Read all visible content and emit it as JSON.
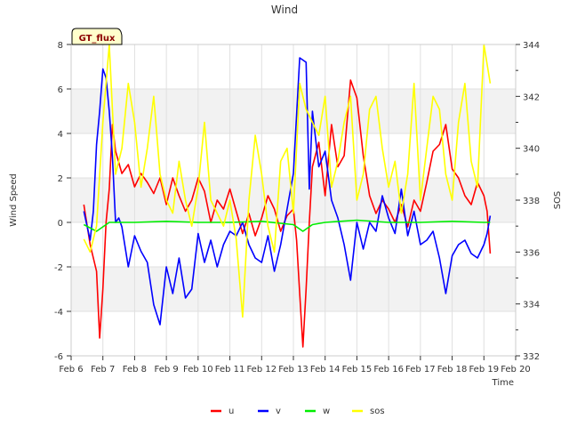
{
  "chart_data": {
    "type": "line",
    "title": "Wind",
    "xlabel": "Time",
    "ylabel": "Wind Speed",
    "y2label": "SOS",
    "badge": "GT_flux",
    "xlim": [
      0,
      14
    ],
    "ylim": [
      -6,
      8
    ],
    "y2lim": [
      332,
      344
    ],
    "x_ticks": [
      {
        "x": 0,
        "label": "Feb 6"
      },
      {
        "x": 1,
        "label": "Feb 7"
      },
      {
        "x": 2,
        "label": "Feb 8"
      },
      {
        "x": 3,
        "label": "Feb 9"
      },
      {
        "x": 4,
        "label": "Feb 10"
      },
      {
        "x": 5,
        "label": "Feb 11"
      },
      {
        "x": 6,
        "label": "Feb 12"
      },
      {
        "x": 7,
        "label": "Feb 13"
      },
      {
        "x": 8,
        "label": "Feb 14"
      },
      {
        "x": 9,
        "label": "Feb 15"
      },
      {
        "x": 10,
        "label": "Feb 16"
      },
      {
        "x": 11,
        "label": "Feb 17"
      },
      {
        "x": 12,
        "label": "Feb 18"
      },
      {
        "x": 13,
        "label": "Feb 19"
      },
      {
        "x": 14,
        "label": "Feb 20"
      }
    ],
    "y_ticks": [
      -6,
      -4,
      -2,
      0,
      2,
      4,
      6,
      8
    ],
    "y2_ticks": [
      332,
      334,
      336,
      338,
      340,
      342,
      344
    ],
    "grid": true,
    "legend_position": "bottom-center",
    "series": [
      {
        "name": "u",
        "axis": "left",
        "color": "#ff0000",
        "x": [
          0.4,
          0.6,
          0.8,
          0.9,
          1.0,
          1.1,
          1.2,
          1.3,
          1.4,
          1.6,
          1.8,
          2.0,
          2.2,
          2.4,
          2.6,
          2.8,
          3.0,
          3.2,
          3.4,
          3.6,
          3.8,
          4.0,
          4.2,
          4.4,
          4.6,
          4.8,
          5.0,
          5.2,
          5.4,
          5.6,
          5.8,
          6.0,
          6.2,
          6.4,
          6.6,
          6.8,
          7.0,
          7.1,
          7.2,
          7.3,
          7.4,
          7.5,
          7.6,
          7.8,
          8.0,
          8.2,
          8.4,
          8.6,
          8.8,
          9.0,
          9.2,
          9.4,
          9.6,
          9.8,
          10.0,
          10.2,
          10.4,
          10.6,
          10.8,
          11.0,
          11.2,
          11.4,
          11.6,
          11.8,
          12.0,
          12.2,
          12.4,
          12.6,
          12.8,
          13.0,
          13.1,
          13.2
        ],
        "y": [
          0.8,
          -1.0,
          -2.2,
          -5.2,
          -3.0,
          0.0,
          1.5,
          4.4,
          3.2,
          2.2,
          2.6,
          1.6,
          2.2,
          1.8,
          1.3,
          2.0,
          0.8,
          2.0,
          1.2,
          0.5,
          1.0,
          2.0,
          1.4,
          0.0,
          1.0,
          0.6,
          1.5,
          0.5,
          -0.5,
          0.4,
          -0.6,
          0.2,
          1.2,
          0.6,
          -0.4,
          0.3,
          0.6,
          -0.8,
          -3.2,
          -5.6,
          -3.0,
          0.0,
          2.5,
          3.6,
          1.2,
          4.4,
          2.5,
          3.0,
          6.4,
          5.6,
          3.0,
          1.2,
          0.4,
          1.0,
          0.6,
          0.0,
          0.8,
          -0.2,
          1.0,
          0.5,
          1.8,
          3.2,
          3.5,
          4.4,
          2.4,
          2.0,
          1.2,
          0.8,
          1.8,
          1.2,
          0.5,
          -1.4
        ]
      },
      {
        "name": "v",
        "axis": "left",
        "color": "#0000ff",
        "x": [
          0.4,
          0.6,
          0.7,
          0.8,
          0.9,
          1.0,
          1.1,
          1.2,
          1.3,
          1.4,
          1.5,
          1.6,
          1.8,
          2.0,
          2.2,
          2.4,
          2.6,
          2.8,
          3.0,
          3.2,
          3.4,
          3.6,
          3.8,
          4.0,
          4.2,
          4.4,
          4.6,
          4.8,
          5.0,
          5.2,
          5.4,
          5.6,
          5.8,
          6.0,
          6.2,
          6.4,
          6.6,
          6.8,
          7.0,
          7.2,
          7.4,
          7.5,
          7.6,
          7.8,
          8.0,
          8.2,
          8.4,
          8.6,
          8.8,
          9.0,
          9.2,
          9.4,
          9.6,
          9.8,
          10.0,
          10.2,
          10.4,
          10.6,
          10.8,
          11.0,
          11.2,
          11.4,
          11.6,
          11.8,
          12.0,
          12.2,
          12.4,
          12.6,
          12.8,
          13.0,
          13.1,
          13.2
        ],
        "y": [
          0.5,
          -0.8,
          0.5,
          3.5,
          5.0,
          6.9,
          6.5,
          5.0,
          3.0,
          0.0,
          0.2,
          -0.2,
          -2.0,
          -0.6,
          -1.3,
          -1.8,
          -3.7,
          -4.6,
          -2.0,
          -3.2,
          -1.6,
          -3.4,
          -3.0,
          -0.5,
          -1.8,
          -0.8,
          -2.0,
          -1.0,
          -0.4,
          -0.6,
          0.0,
          -1.0,
          -1.6,
          -1.8,
          -0.6,
          -2.2,
          -1.0,
          0.6,
          2.2,
          7.4,
          7.2,
          1.5,
          5.0,
          2.5,
          3.2,
          1.0,
          0.2,
          -1.0,
          -2.6,
          0.0,
          -1.2,
          0.0,
          -0.4,
          1.2,
          0.2,
          -0.5,
          1.5,
          -0.6,
          0.5,
          -1.0,
          -0.8,
          -0.4,
          -1.6,
          -3.2,
          -1.5,
          -1.0,
          -0.8,
          -1.4,
          -1.6,
          -1.0,
          -0.5,
          0.3
        ]
      },
      {
        "name": "w",
        "axis": "left",
        "color": "#00ee00",
        "x": [
          0.4,
          0.8,
          1.0,
          1.2,
          2.0,
          3.0,
          4.0,
          5.0,
          6.0,
          7.0,
          7.3,
          7.6,
          8.0,
          9.0,
          10.0,
          11.0,
          12.0,
          13.0,
          13.2
        ],
        "y": [
          -0.1,
          -0.4,
          -0.2,
          0.0,
          0.0,
          0.05,
          0.0,
          0.0,
          0.05,
          -0.1,
          -0.4,
          -0.1,
          0.0,
          0.1,
          0.0,
          0.0,
          0.05,
          0.0,
          0.0
        ]
      },
      {
        "name": "sos",
        "axis": "right",
        "color": "#ffff00",
        "x": [
          0.4,
          0.6,
          0.8,
          1.0,
          1.2,
          1.4,
          1.6,
          1.8,
          2.0,
          2.2,
          2.4,
          2.6,
          2.8,
          3.0,
          3.2,
          3.4,
          3.6,
          3.8,
          4.0,
          4.2,
          4.4,
          4.6,
          4.8,
          5.0,
          5.2,
          5.4,
          5.6,
          5.8,
          6.0,
          6.2,
          6.4,
          6.6,
          6.8,
          7.0,
          7.2,
          7.4,
          7.6,
          7.8,
          8.0,
          8.2,
          8.4,
          8.6,
          8.8,
          9.0,
          9.2,
          9.4,
          9.6,
          9.8,
          10.0,
          10.2,
          10.4,
          10.6,
          10.8,
          11.0,
          11.2,
          11.4,
          11.6,
          11.8,
          12.0,
          12.2,
          12.4,
          12.6,
          12.8,
          13.0,
          13.2
        ],
        "y": [
          336.5,
          336.0,
          337.0,
          341.0,
          344.0,
          339.0,
          340.0,
          342.5,
          341.0,
          338.5,
          340.0,
          342.0,
          339.0,
          338.0,
          337.5,
          339.5,
          338.0,
          337.0,
          338.5,
          341.0,
          338.0,
          337.5,
          337.0,
          338.0,
          336.5,
          333.5,
          338.0,
          340.5,
          339.0,
          337.0,
          336.0,
          339.5,
          340.0,
          337.5,
          342.5,
          341.5,
          341.0,
          340.5,
          342.0,
          338.5,
          339.5,
          341.0,
          342.0,
          338.0,
          339.0,
          341.5,
          342.0,
          340.0,
          338.5,
          339.5,
          337.5,
          339.0,
          342.5,
          338.0,
          340.0,
          342.0,
          341.5,
          339.0,
          338.0,
          341.0,
          342.5,
          339.5,
          338.5,
          344.0,
          342.5
        ]
      }
    ]
  }
}
